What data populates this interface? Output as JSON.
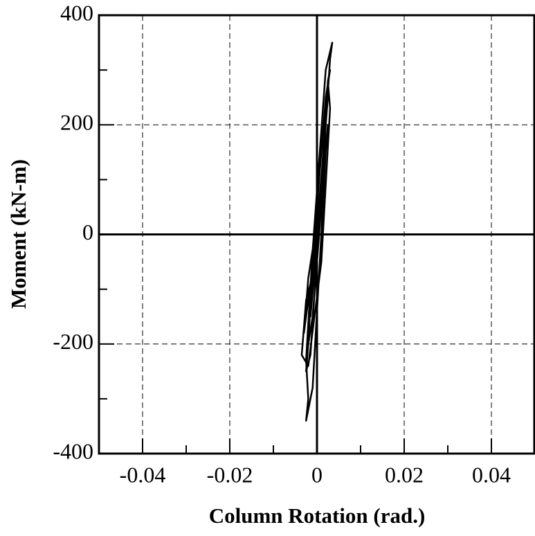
{
  "chart_data": {
    "type": "line",
    "xlabel": "Column Rotation (rad.)",
    "ylabel": "Moment (kN-m)",
    "xlim": [
      -0.05,
      0.05
    ],
    "ylim": [
      -400,
      400
    ],
    "xticks": [
      -0.04,
      -0.02,
      0,
      0.02,
      0.04
    ],
    "yticks": [
      -400,
      -200,
      0,
      200,
      400
    ],
    "xminorticks": [
      -0.03,
      -0.01,
      0.01,
      0.03
    ],
    "yminorticks": [
      -300,
      -100,
      100,
      300
    ],
    "grid": true,
    "series": [
      {
        "name": "Moment",
        "color": "#000000",
        "x": [
          0,
          0.001,
          0.0015,
          0.001,
          -0.0005,
          -0.001,
          0,
          0.0015,
          0.002,
          0.001,
          -0.001,
          -0.0015,
          0,
          0.002,
          0.0025,
          0.0015,
          -0.0015,
          -0.002,
          -0.001,
          0.001,
          0.0025,
          0.003,
          0.002,
          -0.001,
          -0.002,
          -0.0025,
          -0.0015,
          0.001,
          0.003,
          0.0035,
          0.002,
          -0.001,
          -0.0025,
          -0.002,
          -0.0025,
          -0.001,
          0.001,
          0.002,
          0.0005,
          -0.002,
          -0.003,
          -0.0015,
          0.0015,
          0.0025,
          0.0015,
          -0.0005,
          -0.0025,
          -0.0035,
          -0.002,
          0.001,
          0.003,
          0.0025
        ],
        "values": [
          0,
          50,
          100,
          50,
          -50,
          -100,
          0,
          150,
          200,
          100,
          -100,
          -150,
          -20,
          220,
          250,
          150,
          -120,
          -200,
          -150,
          50,
          280,
          300,
          250,
          -50,
          -200,
          -250,
          -220,
          80,
          320,
          350,
          300,
          -30,
          -230,
          -300,
          -340,
          -280,
          0,
          150,
          50,
          -80,
          -180,
          -90,
          100,
          200,
          120,
          -60,
          -120,
          -220,
          -240,
          -50,
          230,
          280
        ]
      }
    ]
  }
}
